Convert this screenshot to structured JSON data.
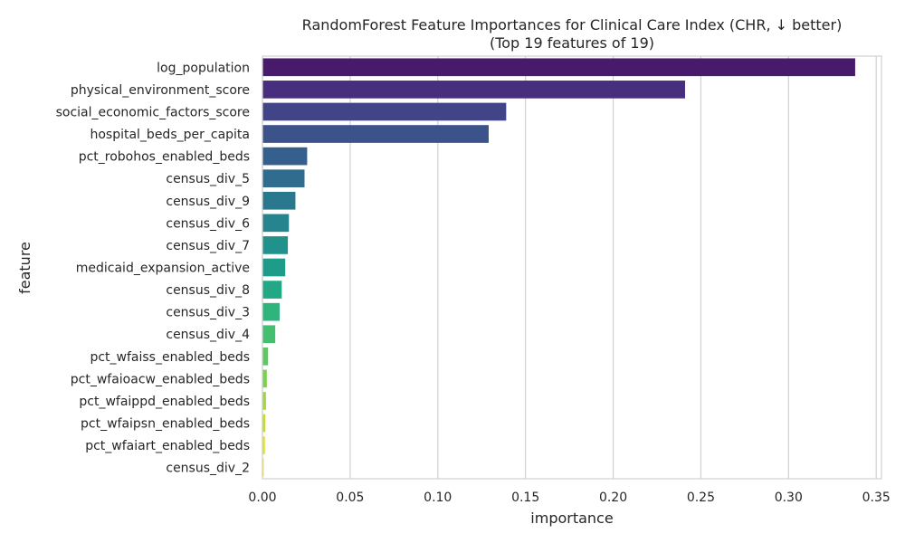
{
  "chart_data": {
    "type": "bar",
    "orientation": "horizontal",
    "title": "RandomForest Feature Importances for Clinical Care Index (CHR, ↓ better)",
    "subtitle": "(Top 19 features of 19)",
    "xlabel": "importance",
    "ylabel": "feature",
    "xlim": [
      0,
      0.353
    ],
    "xticks": [
      0.0,
      0.05,
      0.1,
      0.15,
      0.2,
      0.25,
      0.3,
      0.35
    ],
    "xtick_labels": [
      "0.00",
      "0.05",
      "0.10",
      "0.15",
      "0.20",
      "0.25",
      "0.30",
      "0.35"
    ],
    "grid": true,
    "palette": "viridis",
    "categories": [
      "log_population",
      "physical_environment_score",
      "social_economic_factors_score",
      "hospital_beds_per_capita",
      "pct_robohos_enabled_beds",
      "census_div_5",
      "census_div_9",
      "census_div_6",
      "census_div_7",
      "medicaid_expansion_active",
      "census_div_8",
      "census_div_3",
      "census_div_4",
      "pct_wfaiss_enabled_beds",
      "pct_wfaioacw_enabled_beds",
      "pct_wfaippd_enabled_beds",
      "pct_wfaipsn_enabled_beds",
      "pct_wfaiart_enabled_beds",
      "census_div_2"
    ],
    "values": [
      0.338,
      0.241,
      0.139,
      0.129,
      0.0255,
      0.024,
      0.0188,
      0.0151,
      0.0145,
      0.013,
      0.011,
      0.0098,
      0.0073,
      0.0032,
      0.0025,
      0.002,
      0.0016,
      0.0014,
      0.0008
    ],
    "colors": [
      "#481a6c",
      "#472f7d",
      "#414487",
      "#3b528b",
      "#355f8d",
      "#2f6c8e",
      "#2a788e",
      "#25848e",
      "#21918c",
      "#1e9c89",
      "#22a884",
      "#2fb47c",
      "#44bf70",
      "#5ec962",
      "#7ad151",
      "#9bd93c",
      "#bddf26",
      "#dfe318",
      "#fde725"
    ]
  }
}
